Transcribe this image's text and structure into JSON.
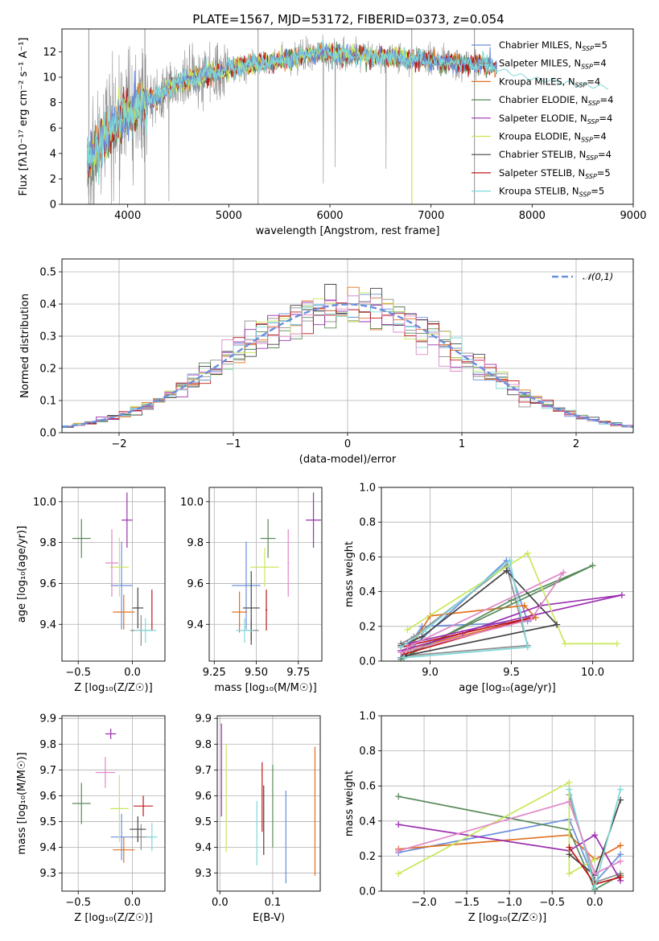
{
  "title": "PLATE=1567, MJD=53172, FIBERID=0373, z=0.054",
  "colors": {
    "Chabrier MILES": "#6a8fdc",
    "Salpeter MILES": "#8e8e8e",
    "Kroupa MILES": "#e07020",
    "Chabrier ELODIE": "#5a8a5a",
    "Salpeter ELODIE": "#9b30b0",
    "Kroupa ELODIE": "#c8e85a",
    "Chabrier STELIB": "#454545",
    "Salpeter STELIB": "#c01818",
    "Kroupa STELIB": "#80d8d8",
    "pink": "#e088c8"
  },
  "legend_main": [
    {
      "name": "Chabrier MILES",
      "nssp": "5"
    },
    {
      "name": "Salpeter MILES",
      "nssp": "4"
    },
    {
      "name": "Kroupa MILES",
      "nssp": "4"
    },
    {
      "name": "Chabrier ELODIE",
      "nssp": "4"
    },
    {
      "name": "Salpeter ELODIE",
      "nssp": "4"
    },
    {
      "name": "Kroupa ELODIE",
      "nssp": "4"
    },
    {
      "name": "Chabrier STELIB",
      "nssp": "4"
    },
    {
      "name": "Salpeter STELIB",
      "nssp": "5"
    },
    {
      "name": "Kroupa STELIB",
      "nssp": "5"
    }
  ],
  "legend_hist": "𝒩(0,1)",
  "chart_data": [
    {
      "id": "spectrum",
      "type": "line",
      "xlabel": "wavelength [Angstrom, rest frame]",
      "ylabel": "Flux [fλ10⁻¹⁷ erg cm⁻² s⁻¹ A⁻¹]",
      "xlim": [
        3350,
        9000
      ],
      "ylim": [
        0,
        13.8
      ],
      "xticks": [
        4000,
        5000,
        6000,
        7000,
        8000,
        9000
      ],
      "yticks": [
        0,
        2,
        4,
        6,
        8,
        10,
        12
      ],
      "continuum": [
        [
          3600,
          3.2
        ],
        [
          3700,
          4.5
        ],
        [
          3800,
          5.5
        ],
        [
          3900,
          6.3
        ],
        [
          4000,
          7.2
        ],
        [
          4100,
          7.6
        ],
        [
          4200,
          8.2
        ],
        [
          4300,
          8.3
        ],
        [
          4400,
          9.2
        ],
        [
          4500,
          9.6
        ],
        [
          4700,
          10.0
        ],
        [
          4900,
          10.4
        ],
        [
          5100,
          10.8
        ],
        [
          5300,
          11.1
        ],
        [
          5500,
          11.3
        ],
        [
          5700,
          11.6
        ],
        [
          5900,
          11.9
        ],
        [
          6100,
          11.8
        ],
        [
          6300,
          11.7
        ],
        [
          6500,
          11.6
        ],
        [
          6700,
          11.5
        ],
        [
          6900,
          11.4
        ],
        [
          7100,
          11.2
        ],
        [
          7300,
          11.0
        ],
        [
          7500,
          11.1
        ],
        [
          7600,
          10.8
        ],
        [
          7800,
          10.3
        ],
        [
          8000,
          9.9
        ],
        [
          8200,
          9.7
        ],
        [
          8400,
          9.5
        ],
        [
          8600,
          9.3
        ],
        [
          8750,
          9.2
        ]
      ],
      "observed_range": [
        3600,
        7450
      ]
    },
    {
      "id": "residuals",
      "type": "histogram",
      "xlabel": "(data-model)/error",
      "ylabel": "Normed distribution",
      "xlim": [
        -2.5,
        2.5
      ],
      "ylim": [
        0,
        0.54
      ],
      "xticks": [
        -2,
        -1,
        0,
        1,
        2
      ],
      "yticks": [
        0.0,
        0.1,
        0.2,
        0.3,
        0.4,
        0.5
      ],
      "bin_width": 0.1
    },
    {
      "id": "age-vs-Z",
      "type": "scatter",
      "xlabel": "Z [log₁₀(Z/Z☉)]",
      "ylabel": "age  [log₁₀(age/yr)]",
      "xlim": [
        -0.65,
        0.3
      ],
      "ylim": [
        9.22,
        10.07
      ],
      "xticks": [
        -0.5,
        0.0
      ],
      "yticks": [
        9.4,
        9.6,
        9.8,
        10.0
      ],
      "points": [
        {
          "c": "Chabrier MILES",
          "x": -0.1,
          "y": 9.59,
          "ex": 0.2,
          "ey": 0.43
        },
        {
          "c": "Salpeter MILES",
          "x": 0.08,
          "y": 9.37,
          "ex": 0.2,
          "ey": 0.15
        },
        {
          "c": "Kroupa MILES",
          "x": -0.08,
          "y": 9.46,
          "ex": 0.2,
          "ey": 0.17
        },
        {
          "c": "Chabrier ELODIE",
          "x": -0.47,
          "y": 9.82,
          "ex": 0.17,
          "ey": 0.19
        },
        {
          "c": "Salpeter ELODIE",
          "x": -0.05,
          "y": 9.91,
          "ex": 0.1,
          "ey": 0.27
        },
        {
          "c": "Kroupa ELODIE",
          "x": -0.12,
          "y": 9.68,
          "ex": 0.17,
          "ey": 0.29
        },
        {
          "c": "Chabrier STELIB",
          "x": 0.05,
          "y": 9.48,
          "ex": 0.1,
          "ey": 0.2
        },
        {
          "c": "Salpeter STELIB",
          "x": 0.18,
          "y": 9.47,
          "ex": 0.01,
          "ey": 0.2
        },
        {
          "c": "Kroupa STELIB",
          "x": 0.12,
          "y": 9.37,
          "ex": 0.2,
          "ey": 0.12
        },
        {
          "c": "pink",
          "x": -0.19,
          "y": 9.7,
          "ex": 0.12,
          "ey": 0.33
        }
      ]
    },
    {
      "id": "age-vs-mass",
      "type": "scatter",
      "xlabel": "mass [log₁₀(M/M☉)]",
      "ylabel": "",
      "xlim": [
        9.22,
        9.89
      ],
      "ylim": [
        9.22,
        10.07
      ],
      "xticks": [
        9.25,
        9.5,
        9.75
      ],
      "yticks": [
        9.4,
        9.6,
        9.8,
        10.0
      ],
      "points": [
        {
          "c": "Chabrier MILES",
          "x": 9.44,
          "y": 9.59,
          "ex": 0.17,
          "ey": 0.43
        },
        {
          "c": "Salpeter MILES",
          "x": 9.47,
          "y": 9.37,
          "ex": 0.09,
          "ey": 0.1
        },
        {
          "c": "Kroupa MILES",
          "x": 9.4,
          "y": 9.46,
          "ex": 0.09,
          "ey": 0.2
        },
        {
          "c": "Chabrier ELODIE",
          "x": 9.57,
          "y": 9.82,
          "ex": 0.09,
          "ey": 0.19
        },
        {
          "c": "Salpeter ELODIE",
          "x": 9.84,
          "y": 9.91,
          "ex": 0.09,
          "ey": 0.27
        },
        {
          "c": "Kroupa ELODIE",
          "x": 9.55,
          "y": 9.68,
          "ex": 0.17,
          "ey": 0.19
        },
        {
          "c": "Chabrier STELIB",
          "x": 9.47,
          "y": 9.48,
          "ex": 0.1,
          "ey": 0.36
        },
        {
          "c": "Salpeter STELIB",
          "x": 9.56,
          "y": 9.47,
          "ex": 0.01,
          "ey": 0.2
        },
        {
          "c": "Kroupa STELIB",
          "x": 9.43,
          "y": 9.37,
          "ex": 0.1,
          "ey": 0.12
        },
        {
          "c": "pink",
          "x": 9.69,
          "y": 9.7,
          "ex": 0.01,
          "ey": 0.33
        }
      ]
    },
    {
      "id": "weight-vs-age",
      "type": "line",
      "xlabel": "age  [log₁₀(age/yr)]",
      "ylabel": "mass weight",
      "xlim": [
        8.7,
        10.25
      ],
      "ylim": [
        0,
        1.0
      ],
      "xticks": [
        9.0,
        9.5,
        10.0
      ],
      "yticks": [
        0.0,
        0.2,
        0.4,
        0.6,
        0.8,
        1.0
      ],
      "series": [
        {
          "c": "Chabrier MILES",
          "pts": [
            [
              8.82,
              0.02
            ],
            [
              8.95,
              0.2
            ],
            [
              9.5,
              0.22
            ],
            [
              9.6,
              0.23
            ],
            [
              9.47,
              0.58
            ],
            [
              8.88,
              0.07
            ]
          ]
        },
        {
          "c": "Salpeter MILES",
          "pts": [
            [
              8.82,
              0.1
            ],
            [
              8.9,
              0.14
            ],
            [
              9.47,
              0.55
            ],
            [
              9.6,
              0.09
            ],
            [
              8.85,
              0.03
            ]
          ]
        },
        {
          "c": "Kroupa MILES",
          "pts": [
            [
              8.84,
              0.02
            ],
            [
              9.0,
              0.26
            ],
            [
              9.58,
              0.32
            ],
            [
              9.65,
              0.25
            ],
            [
              8.86,
              0.07
            ]
          ]
        },
        {
          "c": "Chabrier ELODIE",
          "pts": [
            [
              8.82,
              0.01
            ],
            [
              9.5,
              0.35
            ],
            [
              10.0,
              0.55
            ],
            [
              8.88,
              0.05
            ]
          ]
        },
        {
          "c": "Salpeter ELODIE",
          "pts": [
            [
              8.82,
              0.06
            ],
            [
              9.2,
              0.16
            ],
            [
              9.68,
              0.32
            ],
            [
              10.18,
              0.38
            ],
            [
              8.86,
              0.1
            ]
          ]
        },
        {
          "c": "Kroupa ELODIE",
          "pts": [
            [
              8.86,
              0.18
            ],
            [
              9.6,
              0.62
            ],
            [
              9.83,
              0.1
            ],
            [
              10.15,
              0.1
            ]
          ]
        },
        {
          "c": "Chabrier STELIB",
          "pts": [
            [
              8.82,
              0.09
            ],
            [
              8.95,
              0.14
            ],
            [
              9.47,
              0.52
            ],
            [
              9.78,
              0.21
            ],
            [
              8.84,
              0.03
            ]
          ]
        },
        {
          "c": "Salpeter STELIB",
          "pts": [
            [
              8.82,
              0.08
            ],
            [
              9.62,
              0.25
            ],
            [
              8.84,
              0.04
            ]
          ]
        },
        {
          "c": "Kroupa STELIB",
          "pts": [
            [
              8.82,
              0.08
            ],
            [
              8.96,
              0.17
            ],
            [
              9.49,
              0.58
            ],
            [
              9.6,
              0.08
            ],
            [
              8.84,
              0.02
            ]
          ]
        },
        {
          "c": "pink",
          "pts": [
            [
              8.82,
              0.05
            ],
            [
              9.62,
              0.24
            ],
            [
              9.82,
              0.51
            ],
            [
              8.86,
              0.08
            ]
          ]
        }
      ]
    },
    {
      "id": "mass-vs-Z",
      "type": "scatter",
      "xlabel": "Z [log₁₀(Z/Z☉)]",
      "ylabel": "mass [log₁₀(M/M☉)]",
      "xlim": [
        -0.65,
        0.3
      ],
      "ylim": [
        9.23,
        9.91
      ],
      "xticks": [
        -0.5,
        0.0
      ],
      "yticks": [
        9.3,
        9.4,
        9.5,
        9.6,
        9.7,
        9.8,
        9.9
      ],
      "points": [
        {
          "c": "Chabrier MILES",
          "x": -0.1,
          "y": 9.44,
          "ex": 0.2,
          "ey": 0.18
        },
        {
          "c": "Salpeter MILES",
          "x": 0.08,
          "y": 9.44,
          "ex": 0.2,
          "ey": 0.1
        },
        {
          "c": "Kroupa MILES",
          "x": -0.08,
          "y": 9.39,
          "ex": 0.2,
          "ey": 0.1
        },
        {
          "c": "Chabrier ELODIE",
          "x": -0.47,
          "y": 9.57,
          "ex": 0.17,
          "ey": 0.16
        },
        {
          "c": "Salpeter ELODIE",
          "x": -0.2,
          "y": 9.84,
          "ex": 0.1,
          "ey": 0.04
        },
        {
          "c": "Kroupa ELODIE",
          "x": -0.12,
          "y": 9.55,
          "ex": 0.17,
          "ey": 0.26
        },
        {
          "c": "Chabrier STELIB",
          "x": 0.05,
          "y": 9.47,
          "ex": 0.15,
          "ey": 0.1
        },
        {
          "c": "Salpeter STELIB",
          "x": 0.1,
          "y": 9.56,
          "ex": 0.18,
          "ey": 0.08
        },
        {
          "c": "Kroupa STELIB",
          "x": 0.18,
          "y": 9.44,
          "ex": 0.1,
          "ey": 0.11
        },
        {
          "c": "pink",
          "x": -0.25,
          "y": 9.69,
          "ex": 0.18,
          "ey": 0.12
        }
      ]
    },
    {
      "id": "mass-vs-EBV",
      "type": "scatter",
      "xlabel": "E(B-V)",
      "ylabel": "",
      "xlim": [
        -0.005,
        0.19
      ],
      "ylim": [
        9.23,
        9.91
      ],
      "xticks": [
        0.0,
        0.1
      ],
      "yticks": [
        9.3,
        9.4,
        9.5,
        9.6,
        9.7,
        9.8,
        9.9
      ],
      "vlines": [
        {
          "c": "Salpeter ELODIE",
          "x": 0.003,
          "y0": 9.52,
          "y1": 9.88
        },
        {
          "c": "Kroupa ELODIE",
          "x": 0.012,
          "y0": 9.38,
          "y1": 9.8
        },
        {
          "c": "Kroupa STELIB",
          "x": 0.07,
          "y0": 9.33,
          "y1": 9.58
        },
        {
          "c": "Salpeter STELIB",
          "x": 0.08,
          "y0": 9.46,
          "y1": 9.73
        },
        {
          "c": "Chabrier STELIB",
          "x": 0.083,
          "y0": 9.37,
          "y1": 9.64
        },
        {
          "c": "Chabrier ELODIE",
          "x": 0.1,
          "y0": 9.4,
          "y1": 9.72
        },
        {
          "c": "Chabrier MILES",
          "x": 0.125,
          "y0": 9.26,
          "y1": 9.62
        },
        {
          "c": "Kroupa MILES",
          "x": 0.18,
          "y0": 9.29,
          "y1": 9.79
        }
      ]
    },
    {
      "id": "weight-vs-Z",
      "type": "line",
      "xlabel": "Z [log₁₀(Z/Z☉)]",
      "ylabel": "mass weight",
      "xlim": [
        -2.5,
        0.45
      ],
      "ylim": [
        0,
        1.0
      ],
      "xticks": [
        -2.0,
        -1.5,
        -1.0,
        -0.5,
        0.0
      ],
      "yticks": [
        0.0,
        0.2,
        0.4,
        0.6,
        0.8,
        1.0
      ],
      "series": [
        {
          "c": "Chabrier MILES",
          "pts": [
            [
              -2.3,
              0.22
            ],
            [
              -0.3,
              0.41
            ],
            [
              0.0,
              0.05
            ],
            [
              0.3,
              0.21
            ]
          ]
        },
        {
          "c": "Salpeter MILES",
          "pts": [
            [
              -0.3,
              0.55
            ],
            [
              0.0,
              0.05
            ],
            [
              0.3,
              0.1
            ]
          ]
        },
        {
          "c": "Kroupa MILES",
          "pts": [
            [
              -2.3,
              0.24
            ],
            [
              -0.3,
              0.32
            ],
            [
              0.0,
              0.18
            ],
            [
              0.3,
              0.26
            ]
          ]
        },
        {
          "c": "Chabrier ELODIE",
          "pts": [
            [
              -2.3,
              0.54
            ],
            [
              -0.3,
              0.35
            ],
            [
              0.0,
              0.01
            ],
            [
              0.3,
              0.09
            ]
          ]
        },
        {
          "c": "Salpeter ELODIE",
          "pts": [
            [
              -2.3,
              0.38
            ],
            [
              -0.3,
              0.23
            ],
            [
              0.0,
              0.32
            ],
            [
              0.3,
              0.06
            ]
          ]
        },
        {
          "c": "Kroupa ELODIE",
          "pts": [
            [
              -2.3,
              0.1
            ],
            [
              -0.3,
              0.62
            ],
            [
              -0.3,
              0.1
            ],
            [
              0.0,
              0.18
            ]
          ]
        },
        {
          "c": "Chabrier STELIB",
          "pts": [
            [
              -0.3,
              0.21
            ],
            [
              0.0,
              0.09
            ],
            [
              0.3,
              0.52
            ]
          ]
        },
        {
          "c": "Salpeter STELIB",
          "pts": [
            [
              -0.3,
              0.25
            ],
            [
              0.0,
              0.04
            ],
            [
              0.3,
              0.08
            ]
          ]
        },
        {
          "c": "Kroupa STELIB",
          "pts": [
            [
              -0.3,
              0.58
            ],
            [
              0.0,
              0.02
            ],
            [
              0.3,
              0.58
            ]
          ]
        },
        {
          "c": "pink",
          "pts": [
            [
              -2.3,
              0.23
            ],
            [
              -0.3,
              0.51
            ],
            [
              0.0,
              0.1
            ],
            [
              0.3,
              0.17
            ]
          ]
        }
      ]
    }
  ]
}
